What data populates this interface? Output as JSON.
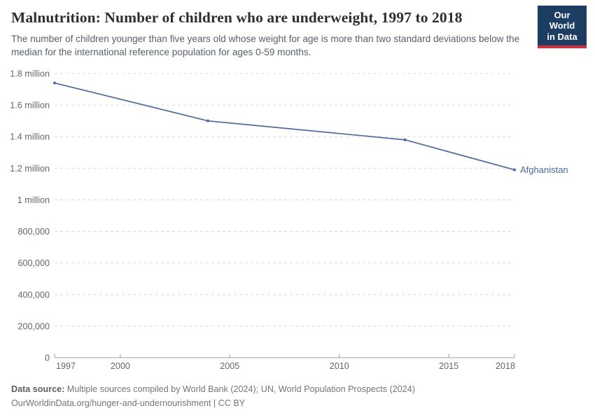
{
  "header": {
    "title": "Malnutrition: Number of children who are underweight, 1997 to 2018",
    "subtitle": "The number of children younger than five years old whose weight for age is more than two standard deviations below the median for the international reference population for ages 0-59 months.",
    "logo": {
      "line1": "Our World",
      "line2": "in Data",
      "bg_color": "#1d3d63",
      "accent_color": "#d22e3e"
    }
  },
  "chart_data": {
    "type": "line",
    "title": "Malnutrition: Number of children who are underweight, 1997 to 2018",
    "xlabel": "",
    "ylabel": "",
    "xlim": [
      1997,
      2018
    ],
    "ylim": [
      0,
      1800000
    ],
    "grid": "horizontal-dashed",
    "legend_position": "end-of-line-label",
    "series": [
      {
        "name": "Afghanistan",
        "color": "#4c6a9c",
        "points": [
          {
            "year": 1997,
            "value": 1740000
          },
          {
            "year": 2004,
            "value": 1500000
          },
          {
            "year": 2013,
            "value": 1380000
          },
          {
            "year": 2018,
            "value": 1190000
          }
        ]
      }
    ],
    "x_ticks": [
      {
        "year": 1997,
        "label": "1997",
        "align": "start"
      },
      {
        "year": 2000,
        "label": "2000",
        "align": "middle"
      },
      {
        "year": 2005,
        "label": "2005",
        "align": "middle"
      },
      {
        "year": 2010,
        "label": "2010",
        "align": "middle"
      },
      {
        "year": 2015,
        "label": "2015",
        "align": "middle"
      },
      {
        "year": 2018,
        "label": "2018",
        "align": "end"
      }
    ],
    "y_ticks": [
      {
        "value": 0,
        "label": "0"
      },
      {
        "value": 200000,
        "label": "200,000"
      },
      {
        "value": 400000,
        "label": "400,000"
      },
      {
        "value": 600000,
        "label": "600,000"
      },
      {
        "value": 800000,
        "label": "800,000"
      },
      {
        "value": 1000000,
        "label": "1 million"
      },
      {
        "value": 1200000,
        "label": "1.2 million"
      },
      {
        "value": 1400000,
        "label": "1.4 million"
      },
      {
        "value": 1600000,
        "label": "1.6 million"
      },
      {
        "value": 1800000,
        "label": "1.8 million"
      }
    ],
    "colors": {
      "gridline": "#dcdcdc",
      "axis": "#a1a1a1",
      "tick_label": "#666666"
    }
  },
  "footer": {
    "datasource_label": "Data source:",
    "datasource_text": " Multiple sources compiled by World Bank (2024); UN, World Population Prospects (2024)",
    "link_line": "OurWorldinData.org/hunger-and-undernourishment | CC BY"
  }
}
